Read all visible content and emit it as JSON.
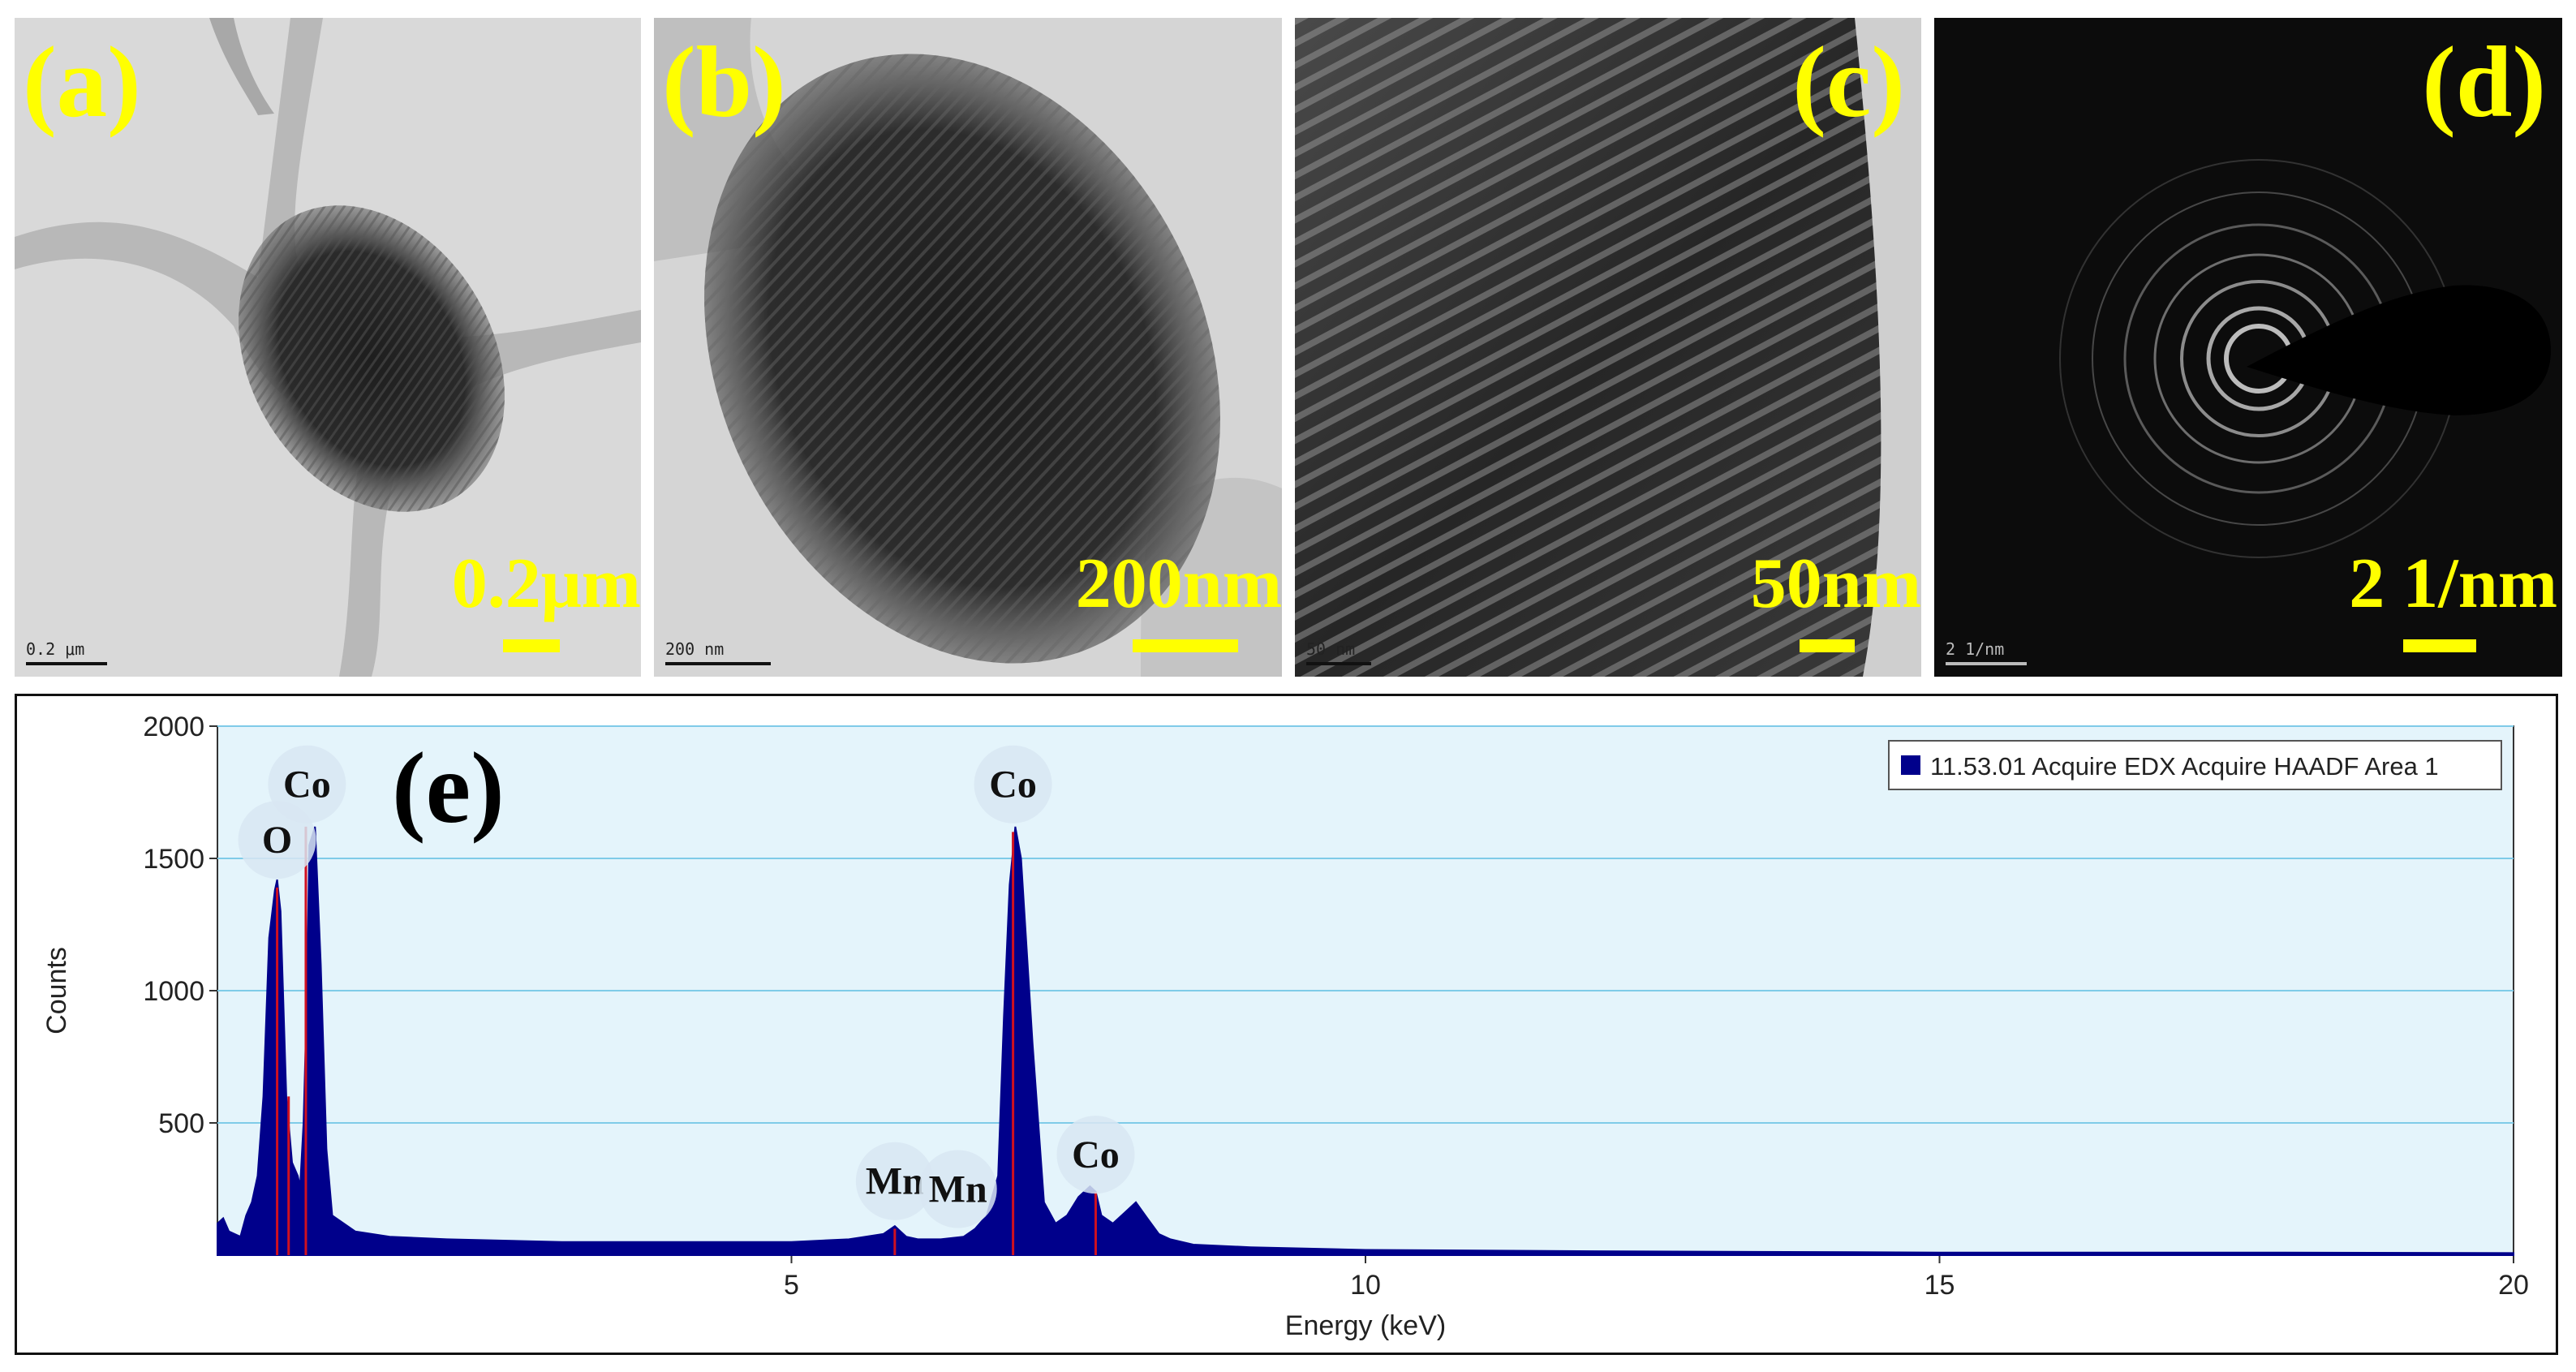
{
  "panels": [
    {
      "label": "(a)",
      "scale_text": "0.2μm",
      "image_scale_text": "0.2 μm"
    },
    {
      "label": "(b)",
      "scale_text": "200nm",
      "image_scale_text": "200 nm"
    },
    {
      "label": "(c)",
      "scale_text": "50nm",
      "image_scale_text": "50 nm"
    },
    {
      "label": "(d)",
      "scale_text": "2 1/nm",
      "image_scale_text": "2 1/nm"
    }
  ],
  "colors": {
    "label": "#ffff00",
    "spectrum": "#00008b",
    "plot_bg": "#e4f4fb",
    "gridline": "#7fcbe8",
    "peak_marker": "#d01020"
  },
  "chart_data": {
    "type": "area",
    "panel_label": "(e)",
    "xlabel": "Energy (keV)",
    "ylabel": "Counts",
    "xlim": [
      0,
      20
    ],
    "ylim": [
      0,
      2000
    ],
    "xticks": [
      5,
      10,
      15,
      20
    ],
    "yticks": [
      500,
      1000,
      1500,
      2000
    ],
    "grid": true,
    "legend": {
      "position": "top-right",
      "entries": [
        "11.53.01 Acquire EDX Acquire HAADF Area 1"
      ]
    },
    "series": [
      {
        "name": "11.53.01 Acquire EDX Acquire HAADF Area 1",
        "x": [
          0.0,
          0.05,
          0.1,
          0.15,
          0.2,
          0.25,
          0.3,
          0.35,
          0.4,
          0.45,
          0.5,
          0.52,
          0.55,
          0.6,
          0.65,
          0.7,
          0.72,
          0.75,
          0.78,
          0.8,
          0.85,
          0.9,
          0.95,
          1.0,
          1.2,
          1.5,
          2.0,
          3.0,
          4.0,
          5.0,
          5.5,
          5.8,
          5.9,
          5.95,
          6.0,
          6.1,
          6.3,
          6.5,
          6.6,
          6.7,
          6.8,
          6.85,
          6.9,
          6.95,
          7.0,
          7.1,
          7.2,
          7.3,
          7.4,
          7.5,
          7.6,
          7.65,
          7.7,
          7.8,
          7.9,
          8.0,
          8.1,
          8.2,
          8.3,
          8.5,
          9.0,
          10.0,
          12.0,
          15.0,
          18.0,
          20.0
        ],
        "y": [
          120,
          140,
          90,
          80,
          70,
          150,
          200,
          300,
          600,
          1200,
          1380,
          1420,
          1300,
          600,
          350,
          300,
          260,
          500,
          1000,
          1550,
          1620,
          1100,
          400,
          150,
          90,
          70,
          60,
          50,
          50,
          50,
          60,
          80,
          110,
          90,
          70,
          60,
          60,
          70,
          100,
          150,
          300,
          900,
          1400,
          1620,
          1500,
          800,
          200,
          120,
          150,
          220,
          260,
          240,
          150,
          120,
          160,
          200,
          140,
          80,
          60,
          40,
          30,
          20,
          15,
          10,
          10,
          8
        ]
      }
    ],
    "peak_labels": [
      {
        "text": "O",
        "x": 0.52,
        "y": 1570
      },
      {
        "text": "Co",
        "x": 0.78,
        "y": 1780
      },
      {
        "text": "Co",
        "x": 6.93,
        "y": 1780
      },
      {
        "text": "Mn",
        "x": 5.9,
        "y": 280
      },
      {
        "text": "Mn",
        "x": 6.45,
        "y": 250
      },
      {
        "text": "Co",
        "x": 7.65,
        "y": 380
      }
    ],
    "peak_markers": [
      {
        "x": 0.52,
        "y": 1390
      },
      {
        "x": 0.62,
        "y": 600
      },
      {
        "x": 0.77,
        "y": 1620
      },
      {
        "x": 5.9,
        "y": 100
      },
      {
        "x": 6.93,
        "y": 1600
      },
      {
        "x": 7.65,
        "y": 240
      }
    ]
  }
}
